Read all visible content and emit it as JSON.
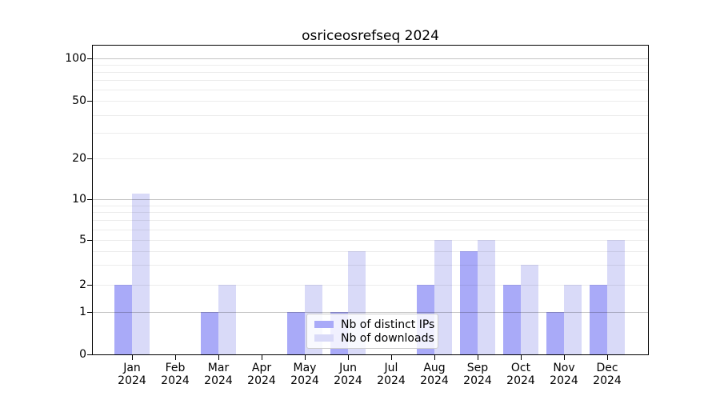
{
  "title": "osriceosrefseq 2024",
  "year_label": "2024",
  "colors": {
    "distinct_ips": "#a9aaf8",
    "downloads": "#d9daf8",
    "grid_major": "#c4c4c4",
    "grid_minor": "#ececec",
    "spine": "#000000"
  },
  "legend": {
    "items": [
      {
        "label": "Nb of distinct IPs"
      },
      {
        "label": "Nb of downloads"
      }
    ]
  },
  "chart_data": {
    "type": "bar",
    "title": "osriceosrefseq 2024",
    "categories": [
      "Jan 2024",
      "Feb 2024",
      "Mar 2024",
      "Apr 2024",
      "May 2024",
      "Jun 2024",
      "Jul 2024",
      "Aug 2024",
      "Sep 2024",
      "Oct 2024",
      "Nov 2024",
      "Dec 2024"
    ],
    "month_labels": [
      "Jan",
      "Feb",
      "Mar",
      "Apr",
      "May",
      "Jun",
      "Jul",
      "Aug",
      "Sep",
      "Oct",
      "Nov",
      "Dec"
    ],
    "series": [
      {
        "name": "Nb of distinct IPs",
        "key": "distinct_ips",
        "color": "#a9aaf8",
        "values": [
          2,
          0,
          1,
          0,
          1,
          1,
          0,
          2,
          4,
          2,
          1,
          2
        ]
      },
      {
        "name": "Nb of downloads",
        "key": "downloads",
        "color": "#d9daf8",
        "values": [
          11,
          0,
          2,
          0,
          2,
          4,
          0,
          5,
          5,
          3,
          2,
          5
        ]
      }
    ],
    "xlabel": "",
    "ylabel": "",
    "yscale": "symlog",
    "yticks": [
      0,
      1,
      2,
      5,
      10,
      20,
      50,
      100
    ],
    "ylim": [
      0,
      130
    ],
    "grid": true,
    "legend_position": "lower center"
  }
}
